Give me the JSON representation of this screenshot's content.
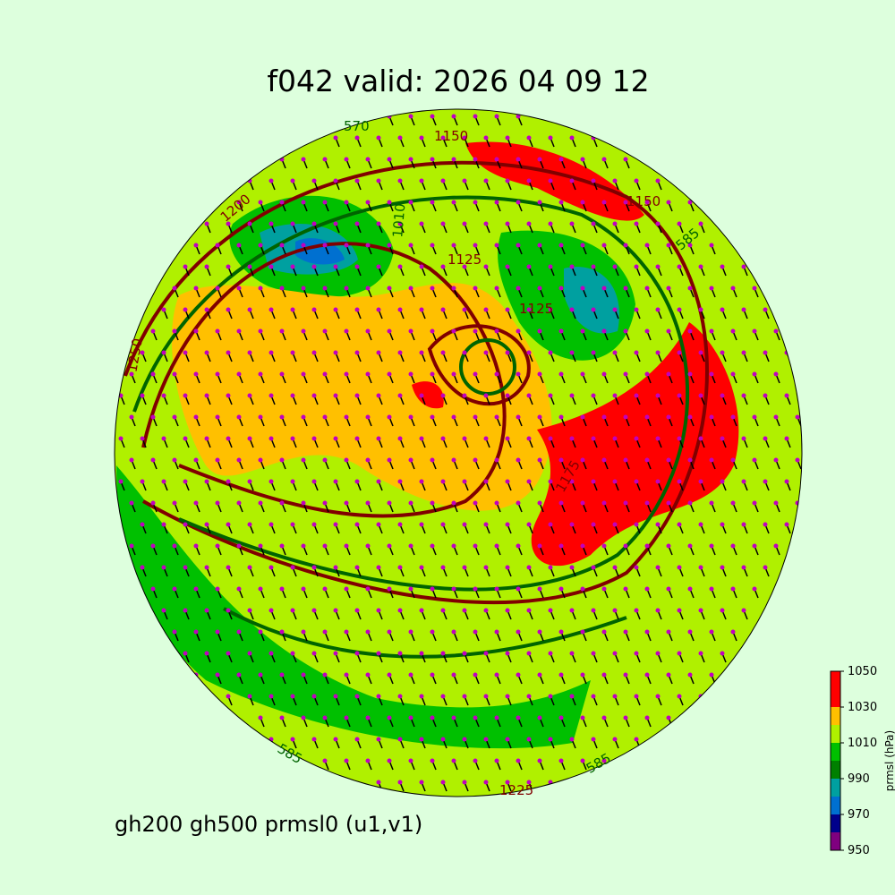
{
  "title": "f042 valid:   2026 04 09 12",
  "footer": "gh200 gh500 prmsl0 (u1,v1)",
  "colorbar": {
    "label": "prmsl (hPa)",
    "levels": [
      950,
      960,
      970,
      980,
      990,
      1000,
      1010,
      1020,
      1030,
      1050
    ],
    "colors": [
      "#7f007f",
      "#00008b",
      "#0070d0",
      "#00a0a0",
      "#008000",
      "#00c000",
      "#b0f000",
      "#ffc000",
      "#ff0000"
    ],
    "ticks": [
      950,
      970,
      990,
      1010,
      1030,
      1050
    ]
  },
  "contour_labels": [
    "570",
    "1150",
    "1125",
    "1125",
    "1250",
    "1200",
    "1010",
    "1225",
    "585",
    "585",
    "585",
    "1175",
    "1150"
  ]
}
